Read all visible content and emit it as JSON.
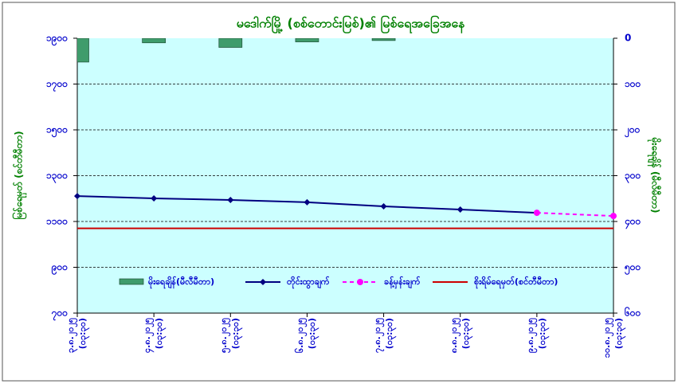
{
  "chart_data": {
    "type": "combo",
    "title": "မဒေါက်မြို့ (စစ်တောင်းမြစ်)၏ မြစ်ရေအခြေအနေ",
    "ylabel": "မြစ်ရေမှတ် (စင်တီမီတာ)",
    "y2label": "မိုးရေချိန် (မီလီမီတာ)",
    "categories": [
      "၃.၈.၂၀၂၅\n(၀၃:၃၀)",
      "၄.၈.၂၀၂၅\n(၀၃:၃၀)",
      "၅.၈.၂၀၂၅\n(၀၃:၃၀)",
      "၆.၈.၂၀၂၅\n(၀၃:၃၀)",
      "၇.၈.၂၀၂၅\n(၀၃:၃၀)",
      "၈.၈.၂၀၂၅\n(၀၃:၃၀)",
      "၉.၈.၂၀၂၅\n(၀၃:၃၀)",
      "၁၀.၈.၂၀၂၅\n(၀၃:၃၀)"
    ],
    "series": [
      {
        "name": "မိုးရေချိန်(မီလီမီတာ)",
        "type": "bar",
        "axis": "y2",
        "color": "#3f9c6c",
        "values": [
          52,
          10,
          20,
          8,
          5,
          0,
          0,
          0
        ]
      },
      {
        "name": "တိုင်းထွာချက်",
        "type": "line",
        "color": "#000080",
        "values": [
          1211,
          1201,
          1194,
          1184,
          1166,
          1152,
          1138,
          null
        ]
      },
      {
        "name": "ခန့်မှန်းချက်",
        "type": "line",
        "color": "#ff00ff",
        "line_style": "dashed",
        "values": [
          null,
          null,
          null,
          null,
          null,
          null,
          1138,
          1124
        ]
      },
      {
        "name": "စိုးရိမ်ရေမှတ်(စင်တီမီတာ)",
        "type": "line",
        "color": "#cc0000",
        "markers": false,
        "values": [
          1070,
          1070,
          1070,
          1070,
          1070,
          1070,
          1070,
          1070
        ]
      }
    ],
    "ylim": [
      700,
      1900
    ],
    "yticks": [
      {
        "value": 700,
        "label": "၇၀၀"
      },
      {
        "value": 900,
        "label": "၉၀၀"
      },
      {
        "value": 1100,
        "label": "၁၁၀၀"
      },
      {
        "value": 1300,
        "label": "၁၃၀၀"
      },
      {
        "value": 1500,
        "label": "၁၅၀၀"
      },
      {
        "value": 1700,
        "label": "၁၇၀၀"
      },
      {
        "value": 1900,
        "label": "၁၉၀၀"
      }
    ],
    "y2lim": [
      0,
      600
    ],
    "y2_inverted": true,
    "y2ticks": [
      0,
      {
        "value": 100,
        "label": "၁၀၀"
      },
      {
        "value": 200,
        "label": "၂၀၀"
      },
      {
        "value": 300,
        "label": "၃၀၀"
      },
      {
        "value": 400,
        "label": "၄၀၀"
      },
      {
        "value": 500,
        "label": "၅၀၀"
      },
      {
        "value": 600,
        "label": "၆၀၀"
      }
    ],
    "grid": true
  }
}
